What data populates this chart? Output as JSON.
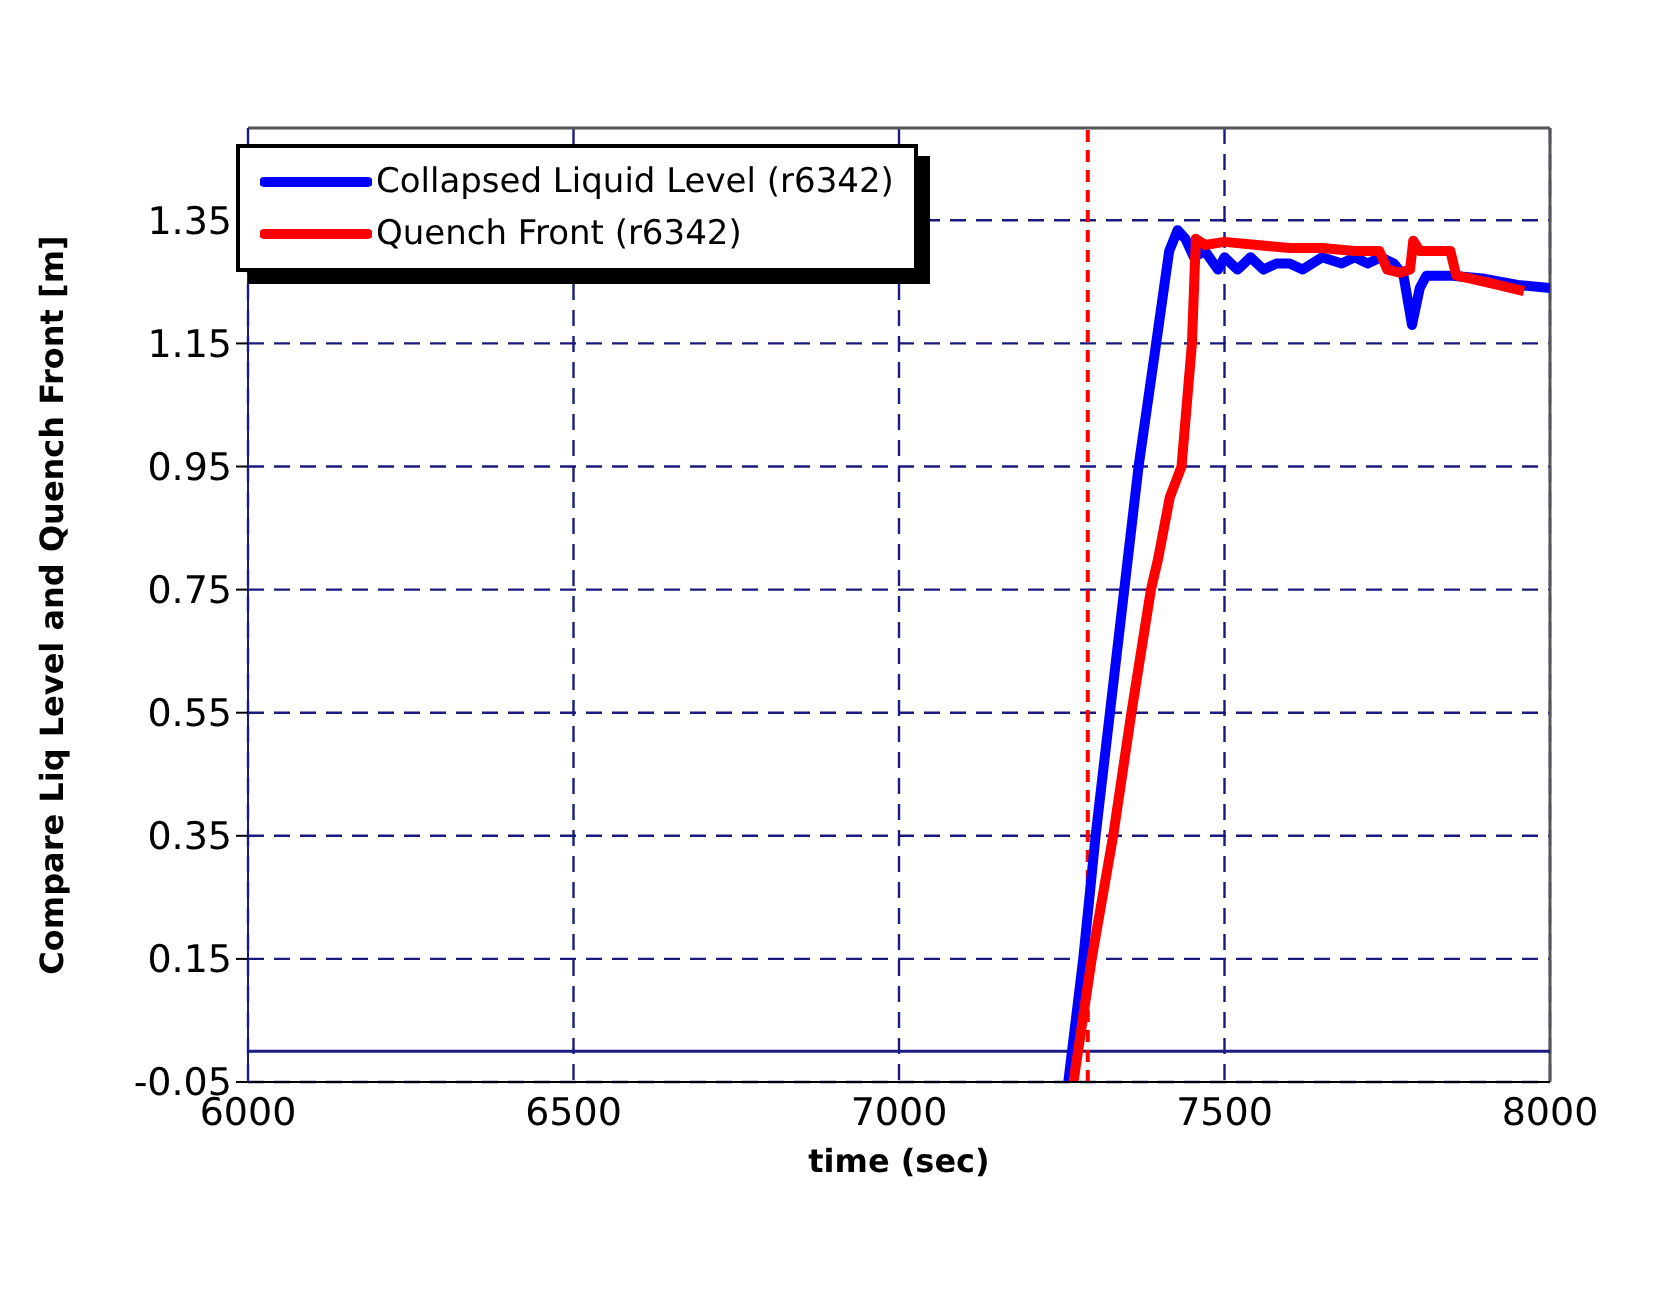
{
  "chart_data": {
    "type": "line",
    "xlabel": "time (sec)",
    "ylabel": "Compare Liq Level and Quench Front [m]",
    "xlim": [
      6000,
      8000
    ],
    "xticks": [
      6000,
      6500,
      7000,
      7500,
      8000
    ],
    "ylim": [
      -0.05,
      1.5
    ],
    "yticks": [
      -0.05,
      0.15,
      0.35,
      0.55,
      0.75,
      0.95,
      1.15,
      1.35
    ],
    "grid": true,
    "legend": "top left",
    "marker": "none",
    "line_style": "solid",
    "ref_lines": [
      {
        "axis": "y",
        "value": 0,
        "color": "#1a1a80",
        "line_style": "solid"
      },
      {
        "axis": "x",
        "value": 7290,
        "color": "#ff0000",
        "line_style": "dashed"
      }
    ],
    "series": [
      {
        "name": "Collapsed Liquid Level (r6342)",
        "color": "#0000ff",
        "x": [
          7260,
          7283,
          7302,
          7324,
          7346,
          7368,
          7395,
          7415,
          7428,
          7440,
          7453,
          7470,
          7490,
          7500,
          7520,
          7540,
          7560,
          7580,
          7600,
          7620,
          7650,
          7680,
          7700,
          7720,
          7740,
          7760,
          7775,
          7788,
          7800,
          7810,
          7850,
          7900,
          7950,
          8000
        ],
        "values": [
          -0.05,
          0.15,
          0.35,
          0.55,
          0.75,
          0.95,
          1.15,
          1.3,
          1.334,
          1.32,
          1.29,
          1.3,
          1.27,
          1.29,
          1.27,
          1.29,
          1.27,
          1.28,
          1.28,
          1.27,
          1.29,
          1.28,
          1.29,
          1.28,
          1.29,
          1.28,
          1.26,
          1.18,
          1.24,
          1.26,
          1.26,
          1.255,
          1.245,
          1.24
        ]
      },
      {
        "name": "Quench Front (r6342)",
        "color": "#ff0000",
        "x": [
          7268,
          7296,
          7329,
          7357,
          7387,
          7398,
          7416,
          7434,
          7450,
          7456,
          7470,
          7500,
          7550,
          7600,
          7650,
          7700,
          7738,
          7750,
          7770,
          7785,
          7790,
          7800,
          7820,
          7847,
          7856,
          7880,
          7920,
          7960
        ],
        "values": [
          -0.05,
          0.15,
          0.35,
          0.55,
          0.75,
          0.8,
          0.9,
          0.95,
          1.15,
          1.32,
          1.31,
          1.315,
          1.31,
          1.305,
          1.305,
          1.3,
          1.3,
          1.27,
          1.265,
          1.27,
          1.317,
          1.3,
          1.3,
          1.3,
          1.26,
          1.255,
          1.245,
          1.235
        ]
      }
    ]
  }
}
